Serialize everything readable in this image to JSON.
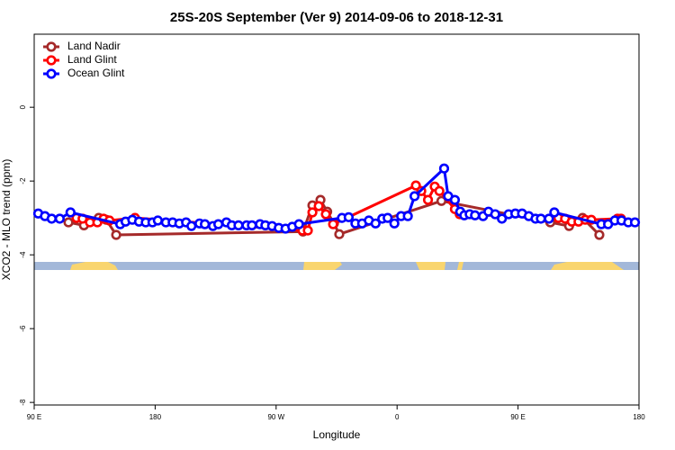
{
  "chart_data": {
    "type": "line",
    "title": "25S-20S September (Ver 9)   2014-09-06 to 2018-12-31",
    "xlabel": "Longitude",
    "ylabel": "XCO2 - MLO trend (ppm)",
    "xlim": [
      90,
      540
    ],
    "ylim": [
      -8.07,
      1.98
    ],
    "xticks": [
      {
        "value": 90,
        "label": "90 E"
      },
      180,
      {
        "value": 270,
        "label": "90 W"
      },
      {
        "value": 360,
        "label": "0"
      },
      {
        "value": 450,
        "label": "90 E"
      },
      {
        "value": 540,
        "label": "180"
      }
    ],
    "yticks": [
      0,
      -2,
      -4,
      -6,
      -8
    ],
    "legend": "top-left",
    "series": [
      {
        "name": "Land Nadir",
        "color": "#a52a2a",
        "x": [
          115.5,
          127,
          138,
          143.6,
          151,
          290,
          297,
          303,
          308,
          313,
          317,
          393,
          474,
          488,
          498,
          510.5
        ],
        "values": [
          -3.12,
          -3.2,
          -3.0,
          -3.05,
          -3.46,
          -3.37,
          -2.66,
          -2.51,
          -2.83,
          -3.15,
          -3.44,
          -2.54,
          -3.12,
          -3.22,
          -3.0,
          -3.46
        ]
      },
      {
        "name": "Land Glint",
        "color": "#ff0000",
        "x": [
          121.5,
          126,
          131.5,
          137,
          141.6,
          146,
          165,
          289.6,
          293.6,
          297,
          301.7,
          307,
          312.4,
          374,
          378,
          383,
          388,
          391.5,
          403,
          406.6,
          480,
          485,
          490,
          495,
          500,
          504.5,
          524,
          526.6
        ],
        "values": [
          -3.0,
          -3.02,
          -3.12,
          -3.12,
          -3.02,
          -3.07,
          -3.0,
          -3.34,
          -3.34,
          -2.85,
          -2.68,
          -2.9,
          -3.17,
          -2.12,
          -2.27,
          -2.51,
          -2.15,
          -2.27,
          -2.76,
          -2.9,
          -3.0,
          -3.02,
          -3.1,
          -3.1,
          -3.05,
          -3.05,
          -3.02,
          -3.02
        ]
      },
      {
        "name": "Ocean Glint",
        "color": "#0000ff",
        "x": [
          93,
          98,
          103,
          109,
          117,
          154,
          158,
          163,
          168,
          173,
          178,
          182,
          188,
          193,
          198,
          203,
          207,
          213,
          217,
          223,
          227,
          233,
          237,
          242,
          248,
          252,
          258,
          262,
          267,
          272,
          277,
          282,
          287,
          319,
          324,
          329,
          334,
          339,
          344,
          349,
          353,
          358,
          363,
          368,
          373,
          395,
          398,
          403,
          407,
          410,
          414,
          418,
          424,
          428,
          433,
          438,
          443,
          448,
          453,
          458,
          463,
          467,
          473,
          477,
          512,
          517,
          522,
          527,
          532,
          537
        ],
        "values": [
          -2.88,
          -2.95,
          -3.02,
          -3.02,
          -2.85,
          -3.17,
          -3.1,
          -3.05,
          -3.1,
          -3.12,
          -3.12,
          -3.07,
          -3.12,
          -3.12,
          -3.15,
          -3.12,
          -3.22,
          -3.15,
          -3.17,
          -3.22,
          -3.17,
          -3.12,
          -3.2,
          -3.2,
          -3.2,
          -3.2,
          -3.17,
          -3.2,
          -3.22,
          -3.27,
          -3.29,
          -3.24,
          -3.17,
          -3.0,
          -2.98,
          -3.15,
          -3.15,
          -3.07,
          -3.15,
          -3.02,
          -3.0,
          -3.15,
          -2.95,
          -2.95,
          -2.41,
          -1.66,
          -2.41,
          -2.51,
          -2.83,
          -2.93,
          -2.9,
          -2.93,
          -2.95,
          -2.83,
          -2.9,
          -3.02,
          -2.9,
          -2.88,
          -2.88,
          -2.95,
          -3.02,
          -3.02,
          -3.02,
          -2.85,
          -3.17,
          -3.17,
          -3.07,
          -3.07,
          -3.12,
          -3.12
        ]
      }
    ]
  }
}
